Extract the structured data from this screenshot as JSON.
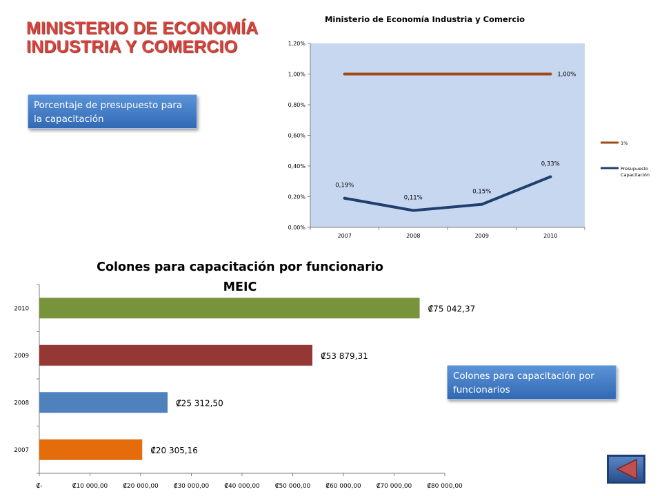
{
  "slide": {
    "title_line1": "MINISTERIO DE ECONOMÍA",
    "title_line2": "INDUSTRIA Y COMERCIO"
  },
  "callouts": {
    "budget": "Porcentaje de presupuesto para la capacitación",
    "colones": "Colones para capacitación por funcionarios"
  },
  "chart_data": [
    {
      "type": "line",
      "title": "Ministerio de Economía Industria y Comercio",
      "x": [
        "2007",
        "2008",
        "2009",
        "2010"
      ],
      "y_ticks": [
        "0,00%",
        "0,20%",
        "0,40%",
        "0,60%",
        "0,80%",
        "1,00%",
        "1,20%"
      ],
      "ylim": [
        0,
        1.2
      ],
      "legend_position": "right",
      "grid": false,
      "series": [
        {
          "name": "1%",
          "values": [
            1.0,
            1.0,
            1.0,
            1.0
          ],
          "labels": [
            "",
            "",
            "",
            "1,00%"
          ],
          "color": "#9c4a18"
        },
        {
          "name": "Presupuesto Capacitación",
          "values": [
            0.19,
            0.11,
            0.15,
            0.33
          ],
          "labels": [
            "0,19%",
            "0,11%",
            "0,15%",
            "0,33%"
          ],
          "color": "#1f3f6e"
        }
      ],
      "plot_background": "#c8d7f0"
    },
    {
      "type": "bar",
      "orientation": "horizontal",
      "title": "Colones para capacitación por funcionario MEIC",
      "categories": [
        "2007",
        "2008",
        "2009",
        "2010"
      ],
      "values": [
        20305.16,
        25312.5,
        53879.31,
        75042.37
      ],
      "data_labels": [
        "₡20 305,16",
        "₡25 312,50",
        "₡53 879,31",
        "₡75 042,37"
      ],
      "colors": [
        "#e46c0a",
        "#4f81bd",
        "#953735",
        "#77933c"
      ],
      "x_ticks": [
        "₡-",
        "₡10 000,00",
        "₡20 000,00",
        "₡30 000,00",
        "₡40 000,00",
        "₡50 000,00",
        "₡60 000,00",
        "₡70 000,00",
        "₡80 000,00"
      ],
      "xlim": [
        0,
        80000
      ],
      "grid": false
    }
  ],
  "nav": {
    "icon": "triangle-left-icon"
  }
}
